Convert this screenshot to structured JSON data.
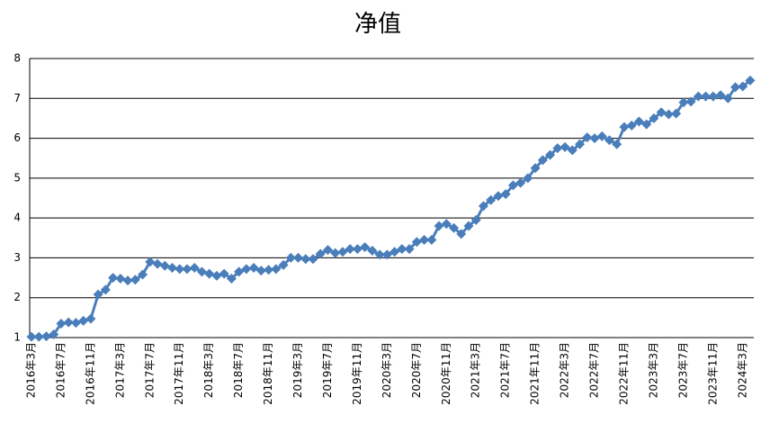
{
  "chart_data": {
    "type": "line",
    "title": "净值",
    "categories": [
      "2016年3月",
      null,
      null,
      null,
      "2016年7月",
      null,
      null,
      null,
      "2016年11月",
      null,
      null,
      null,
      "2017年3月",
      null,
      null,
      null,
      "2017年7月",
      null,
      null,
      null,
      "2017年11月",
      null,
      null,
      null,
      "2018年3月",
      null,
      null,
      null,
      "2018年7月",
      null,
      null,
      null,
      "2018年11月",
      null,
      null,
      null,
      "2019年3月",
      null,
      null,
      null,
      "2019年7月",
      null,
      null,
      null,
      "2019年11月",
      null,
      null,
      null,
      "2020年3月",
      null,
      null,
      null,
      "2020年7月",
      null,
      null,
      null,
      "2020年11月",
      null,
      null,
      null,
      "2021年3月",
      null,
      null,
      null,
      "2021年7月",
      null,
      null,
      null,
      "2021年11月",
      null,
      null,
      null,
      "2022年3月",
      null,
      null,
      null,
      "2022年7月",
      null,
      null,
      null,
      "2022年11月",
      null,
      null,
      null,
      "2023年3月",
      null,
      null,
      null,
      "2023年7月",
      null,
      null,
      null,
      "2023年11月",
      null,
      null,
      null,
      "2024年3月",
      null
    ],
    "values": [
      1.02,
      1.02,
      1.03,
      1.08,
      1.35,
      1.38,
      1.37,
      1.42,
      1.47,
      2.08,
      2.2,
      2.5,
      2.48,
      2.43,
      2.45,
      2.58,
      2.9,
      2.85,
      2.8,
      2.75,
      2.72,
      2.72,
      2.75,
      2.65,
      2.6,
      2.55,
      2.6,
      2.48,
      2.65,
      2.72,
      2.75,
      2.68,
      2.7,
      2.72,
      2.82,
      3.0,
      3.0,
      2.97,
      2.97,
      3.1,
      3.2,
      3.12,
      3.15,
      3.22,
      3.22,
      3.27,
      3.18,
      3.08,
      3.08,
      3.15,
      3.22,
      3.22,
      3.4,
      3.45,
      3.45,
      3.8,
      3.85,
      3.75,
      3.6,
      3.8,
      3.95,
      4.3,
      4.45,
      4.55,
      4.6,
      4.82,
      4.88,
      5.0,
      5.25,
      5.45,
      5.58,
      5.75,
      5.78,
      5.7,
      5.85,
      6.02,
      6.0,
      6.05,
      5.95,
      5.85,
      6.28,
      6.32,
      6.42,
      6.35,
      6.5,
      6.65,
      6.6,
      6.62,
      6.9,
      6.92,
      7.05,
      7.05,
      7.05,
      7.08,
      7.0,
      7.28,
      7.3,
      7.45
    ],
    "color": "#4a7ebb",
    "ylim": [
      1,
      8
    ],
    "yticks": [
      1,
      2,
      3,
      4,
      5,
      6,
      7,
      8
    ],
    "grid": true
  }
}
